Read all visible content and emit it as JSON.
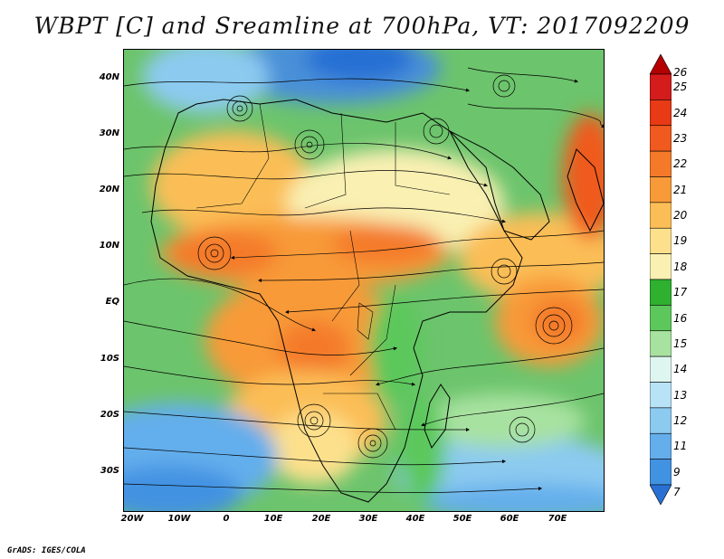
{
  "title": "WBPT [C] and Sreamline at 700hPa, VT: 2017092209",
  "footer": "GrADS: IGES/COLA",
  "map": {
    "lat_labels": [
      "40N",
      "30N",
      "20N",
      "10N",
      "EQ",
      "10S",
      "20S",
      "30S"
    ],
    "lon_labels": [
      "20W",
      "10W",
      "0",
      "10E",
      "20E",
      "30E",
      "40E",
      "50E",
      "60E",
      "70E"
    ]
  },
  "colorbar": {
    "levels": [
      "26",
      "25",
      "24",
      "23",
      "22",
      "21",
      "20",
      "19",
      "18",
      "17",
      "16",
      "15",
      "14",
      "13",
      "12",
      "11",
      "9",
      "7"
    ],
    "colors": [
      "#b40000",
      "#d41c1c",
      "#e83a14",
      "#f05a1e",
      "#f47a2a",
      "#f89a38",
      "#fbbe56",
      "#fde08c",
      "#f9f0b2",
      "#2fb02f",
      "#5cc85c",
      "#a8e2a0",
      "#dff6f0",
      "#b8e2f6",
      "#8ccaf0",
      "#64aeec",
      "#4292e2",
      "#2870d4"
    ]
  }
}
